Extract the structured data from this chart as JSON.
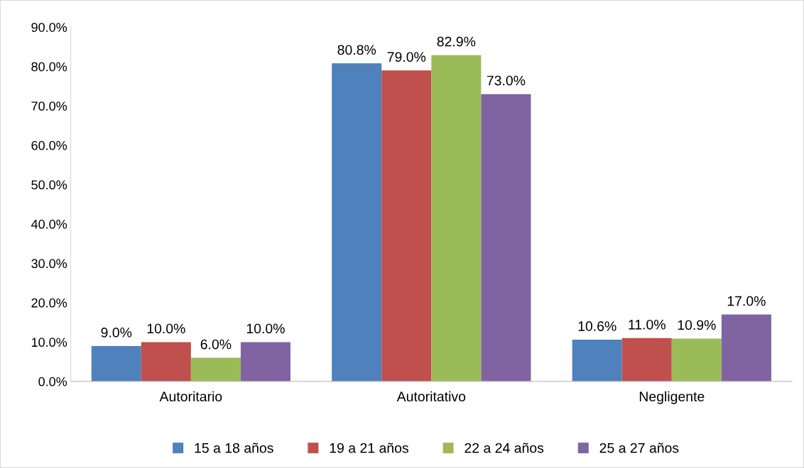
{
  "chart_data": {
    "type": "bar",
    "categories": [
      "Autoritario",
      "Autoritativo",
      "Negligente"
    ],
    "series": [
      {
        "name": "15 a 18 años",
        "color": "#4f81bd",
        "values": [
          9.0,
          80.8,
          10.6
        ],
        "value_labels": [
          "9.0%",
          "80.8%",
          "10.6%"
        ]
      },
      {
        "name": "19 a 21 años",
        "color": "#c0504d",
        "values": [
          10.0,
          79.0,
          11.0
        ],
        "value_labels": [
          "10.0%",
          "79.0%",
          "11.0%"
        ]
      },
      {
        "name": "22 a 24 años",
        "color": "#9bbb59",
        "values": [
          6.0,
          82.9,
          10.9
        ],
        "value_labels": [
          "6.0%",
          "82.9%",
          "10.9%"
        ]
      },
      {
        "name": "25 a 27 años",
        "color": "#8064a2",
        "values": [
          10.0,
          73.0,
          17.0
        ],
        "value_labels": [
          "10.0%",
          "73.0%",
          "17.0%"
        ]
      }
    ],
    "ylim": [
      0,
      90
    ],
    "yticks": [
      {
        "value": 0,
        "label": "0.0%"
      },
      {
        "value": 10,
        "label": "10.0%"
      },
      {
        "value": 20,
        "label": "20.0%"
      },
      {
        "value": 30,
        "label": "30.0%"
      },
      {
        "value": 40,
        "label": "40.0%"
      },
      {
        "value": 50,
        "label": "50.0%"
      },
      {
        "value": 60,
        "label": "60.0%"
      },
      {
        "value": 70,
        "label": "70.0%"
      },
      {
        "value": 80,
        "label": "80.0%"
      },
      {
        "value": 90,
        "label": "90.0%"
      }
    ],
    "grid": false,
    "legend": "bottom"
  }
}
